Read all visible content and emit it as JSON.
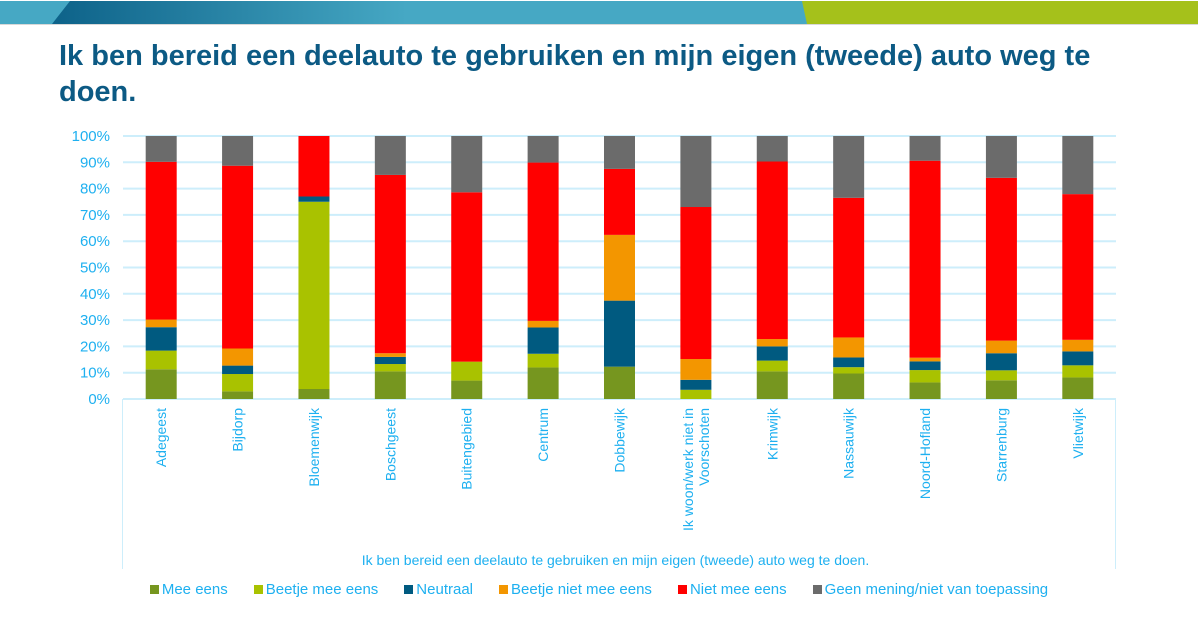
{
  "page": {
    "title": "Ik ben bereid een deelauto te gebruiken en mijn eigen (tweede) auto weg te doen."
  },
  "theme": {
    "band_light": "#46a8c4",
    "band_dark": "#0d6289",
    "band_green": "#a5c11b",
    "title_color": "#0c5a84",
    "label_color": "#1eb0f0",
    "grid_color": "#cdeefb"
  },
  "chart_data": {
    "type": "bar",
    "stacked": true,
    "percent": true,
    "title": "",
    "xlabel": "Ik ben bereid een deelauto te gebruiken en mijn eigen (tweede) auto weg te doen.",
    "ylabel": "",
    "ylim": [
      0,
      100
    ],
    "yticks": [
      "0%",
      "10%",
      "20%",
      "30%",
      "40%",
      "50%",
      "60%",
      "70%",
      "80%",
      "90%",
      "100%"
    ],
    "grid": true,
    "legend_position": "bottom",
    "categories": [
      "Adegeest",
      "Bijdorp",
      "Bloemenwijk",
      "Boschgeest",
      "Buitengebied",
      "Centrum",
      "Dobbewijk",
      "Ik woon/werk niet in Voorschoten",
      "Krimwijk",
      "Nassauwijk",
      "Noord-Hofland",
      "Starrenburg",
      "Vlietwijk"
    ],
    "category_lines": [
      [
        "Adegeest"
      ],
      [
        "Bijdorp"
      ],
      [
        "Bloemenwijk"
      ],
      [
        "Boschgeest"
      ],
      [
        "Buitengebied"
      ],
      [
        "Centrum"
      ],
      [
        "Dobbewijk"
      ],
      [
        "Ik woon/werk niet in",
        "Voorschoten"
      ],
      [
        "Krimwijk"
      ],
      [
        "Nassauwijk"
      ],
      [
        "Noord-Hofland"
      ],
      [
        "Starrenburg"
      ],
      [
        "Vlietwijk"
      ]
    ],
    "series": [
      {
        "name": "Mee eens",
        "color": "#76961f",
        "values": [
          11.3,
          2.9,
          3.8,
          10.5,
          7.0,
          12.0,
          12.3,
          0.0,
          10.5,
          9.7,
          6.3,
          7.1,
          8.2
        ]
      },
      {
        "name": "Beetje mee eens",
        "color": "#a9c200",
        "values": [
          7.1,
          6.6,
          71.2,
          2.8,
          7.2,
          5.2,
          0.0,
          3.5,
          4.1,
          2.4,
          4.7,
          3.8,
          4.6
        ]
      },
      {
        "name": "Neutraal",
        "color": "#005a80",
        "values": [
          8.9,
          3.2,
          2.0,
          2.7,
          0.0,
          10.0,
          25.1,
          3.8,
          5.4,
          3.7,
          3.3,
          6.5,
          5.3
        ]
      },
      {
        "name": "Beetje niet mee eens",
        "color": "#f39600",
        "values": [
          2.9,
          6.5,
          0.0,
          1.4,
          0.0,
          2.5,
          25.0,
          7.9,
          2.8,
          7.6,
          1.4,
          4.8,
          4.4
        ]
      },
      {
        "name": "Niet mee eens",
        "color": "#ff0000",
        "values": [
          60.0,
          69.5,
          23.0,
          67.8,
          64.4,
          60.2,
          25.1,
          57.8,
          67.5,
          53.1,
          74.9,
          61.9,
          55.4
        ]
      },
      {
        "name": "Geen mening/niet van toepassing",
        "color": "#6b6b6b",
        "values": [
          9.8,
          11.3,
          0.0,
          14.8,
          21.4,
          10.1,
          12.5,
          27.0,
          9.7,
          23.5,
          9.4,
          15.9,
          22.1
        ]
      }
    ]
  }
}
